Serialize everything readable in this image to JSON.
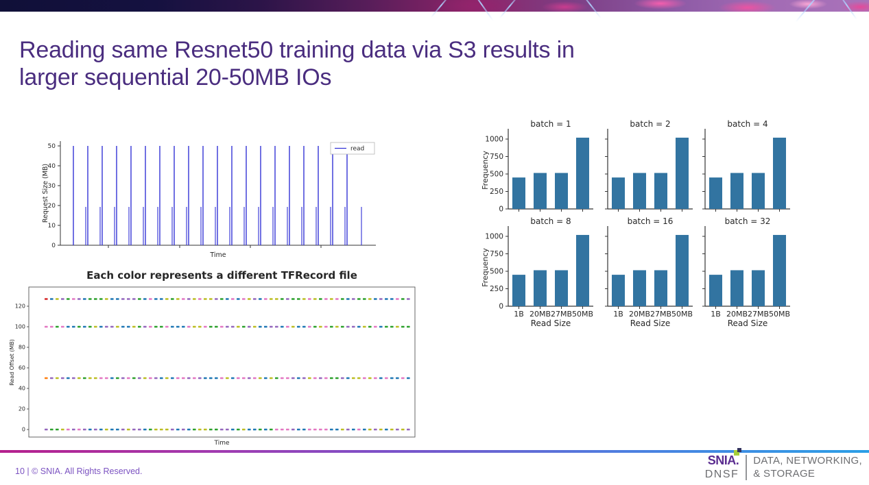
{
  "slide": {
    "title_line1": "Reading same Resnet50 training data via S3 results in",
    "title_line2": "larger sequential 20-50MB IOs",
    "footer": {
      "text": "10 | © SNIA. All Rights Reserved.",
      "logo_brand": "SNIA.",
      "logo_sub": "DNSF",
      "logo_tagline_line1": "DATA, NETWORKING,",
      "logo_tagline_line2": "& STORAGE"
    }
  },
  "colors": {
    "title": "#4a2d7f",
    "footer_text": "#7b52c1",
    "spike_line": "#3232d6",
    "bar_fill": "#3274a1",
    "axis": "#333333",
    "logo_purple": "#5b2d90",
    "logo_gray": "#6d6e71"
  },
  "chart_data": [
    {
      "type": "line",
      "name": "request-size-over-time",
      "ylabel": "Request Size (MB)",
      "xlabel": "Time",
      "yticks": [
        0,
        10,
        20,
        30,
        40,
        50
      ],
      "ylim": [
        0,
        52
      ],
      "legend": [
        "read"
      ],
      "note": "vertical read spikes; x is unlabeled time in px offsets, pairs of 19.3MB and 50MB reads",
      "spikes": [
        [
          19,
          50
        ],
        [
          37,
          19.3
        ],
        [
          40,
          50
        ],
        [
          58,
          19.3
        ],
        [
          61,
          50
        ],
        [
          79,
          19.3
        ],
        [
          82,
          50
        ],
        [
          100,
          19.3
        ],
        [
          103,
          50
        ],
        [
          121,
          19.3
        ],
        [
          124,
          50
        ],
        [
          142,
          19.3
        ],
        [
          145,
          50
        ],
        [
          163,
          19.3
        ],
        [
          166,
          50
        ],
        [
          184,
          19.3
        ],
        [
          187,
          50
        ],
        [
          205,
          19.3
        ],
        [
          208,
          50
        ],
        [
          226,
          19.3
        ],
        [
          229,
          50
        ],
        [
          247,
          19.3
        ],
        [
          250,
          50
        ],
        [
          268,
          19.3
        ],
        [
          271,
          50
        ],
        [
          289,
          19.3
        ],
        [
          292,
          50
        ],
        [
          310,
          19.3
        ],
        [
          313,
          50
        ],
        [
          331,
          19.3
        ],
        [
          334,
          50
        ],
        [
          352,
          19.3
        ],
        [
          355,
          50
        ],
        [
          373,
          19.3
        ],
        [
          376,
          50
        ],
        [
          394,
          19.3
        ],
        [
          397,
          50
        ],
        [
          415,
          19.3
        ],
        [
          418,
          50
        ],
        [
          439,
          19.3
        ]
      ]
    },
    {
      "type": "scatter",
      "name": "read-offset-over-time",
      "title": "Each color represents a different TFRecord file",
      "ylabel": "Read Offset (MB)",
      "xlabel": "Time",
      "yticks": [
        0,
        20,
        40,
        60,
        80,
        100,
        120
      ],
      "ylim": [
        -8,
        138
      ],
      "row_offsets_mb": [
        127,
        100,
        50,
        0
      ],
      "marks_per_row": 67,
      "palette": [
        "#1f77b4",
        "#ff7f0e",
        "#2ca02c",
        "#d62728",
        "#9467bd",
        "#8c564b",
        "#e377c2",
        "#7f7f7f",
        "#bcbd22",
        "#17becf"
      ]
    },
    {
      "type": "bar",
      "name": "read-size-frequency-by-batch",
      "facets": [
        "batch = 1",
        "batch = 2",
        "batch = 4",
        "batch = 8",
        "batch = 16",
        "batch = 32"
      ],
      "categories": [
        "1B",
        "20MB",
        "27MB",
        "50MB"
      ],
      "values": [
        450,
        515,
        515,
        1020
      ],
      "ylabel": "Frequency",
      "xlabel": "Read Size",
      "yticks": [
        0,
        250,
        500,
        750,
        1000
      ],
      "ylim": [
        0,
        1110
      ],
      "legend_position": "none",
      "grid": false
    }
  ]
}
